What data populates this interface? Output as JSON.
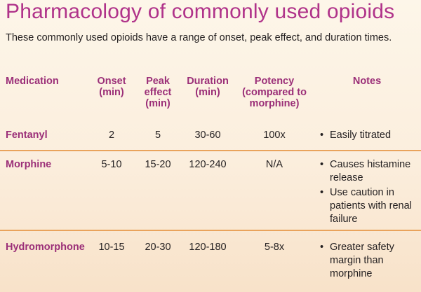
{
  "title": "Pharmacology of commonly used opioids",
  "intro": "These commonly used opioids have a range of onset, peak effect, and duration times.",
  "headers": {
    "medication": "Medication",
    "onset": "Onset (min)",
    "peak": "Peak effect (min)",
    "duration": "Duration (min)",
    "potency": "Potency (compared to morphine)",
    "notes": "Notes"
  },
  "rows": [
    {
      "medication": "Fentanyl",
      "onset": "2",
      "peak": "5",
      "duration": "30-60",
      "potency": "100x",
      "notes": [
        "Easily titrated"
      ]
    },
    {
      "medication": "Morphine",
      "onset": "5-10",
      "peak": "15-20",
      "duration": "120-240",
      "potency": "N/A",
      "notes": [
        "Causes histamine release",
        "Use caution in patients with renal failure"
      ]
    },
    {
      "medication": "Hydromorphone",
      "onset": "10-15",
      "peak": "20-30",
      "duration": "120-180",
      "potency": "5-8x",
      "notes": [
        "Greater safety margin than morphine"
      ]
    }
  ]
}
